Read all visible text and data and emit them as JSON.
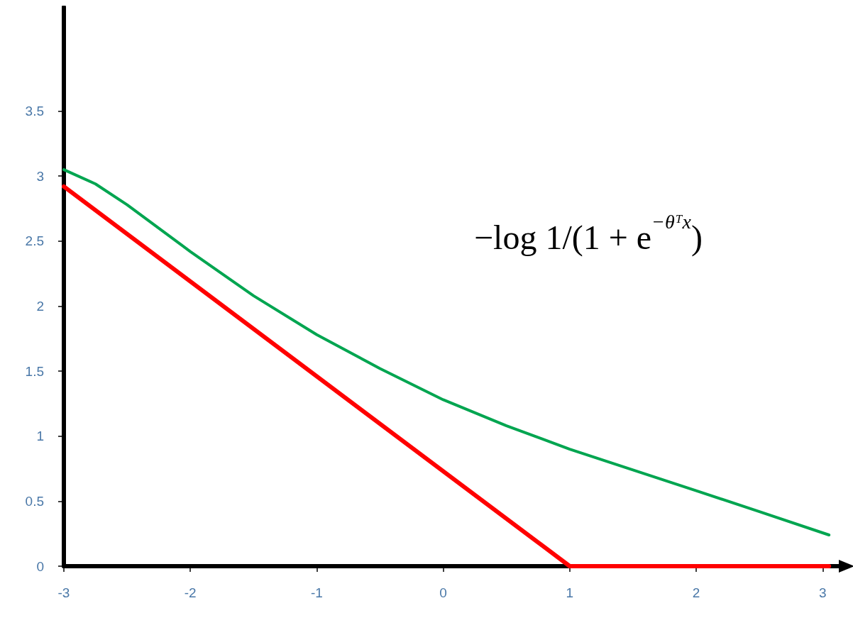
{
  "chart_data": {
    "type": "line",
    "annotations": [
      "−log 1/(1 + e$^{−θᵀx}$)"
    ],
    "xlim": [
      -3,
      3.15
    ],
    "xticks": [
      -3,
      -2,
      -1,
      0,
      1,
      2,
      3
    ],
    "ylim": [
      0,
      4.3
    ],
    "yticks": [
      0,
      0.5,
      1,
      1.5,
      2,
      2.5,
      3,
      3.5
    ],
    "grid": false,
    "marker": "none",
    "line_style": "solid",
    "series": [
      {
        "color": "#00a550",
        "x": [
          -3,
          -2.75,
          -2.5,
          -2,
          -1.5,
          -1,
          -0.5,
          0,
          0.5,
          1,
          1.5,
          2,
          2.5,
          3.05
        ],
        "values": [
          3.05,
          2.94,
          2.78,
          2.42,
          2.08,
          1.78,
          1.52,
          1.28,
          1.08,
          0.9,
          0.74,
          0.58,
          0.42,
          0.24
        ]
      },
      {
        "color": "#ff0000",
        "x": [
          -3,
          1,
          3.05
        ],
        "values": [
          2.92,
          0,
          0
        ]
      }
    ]
  }
}
